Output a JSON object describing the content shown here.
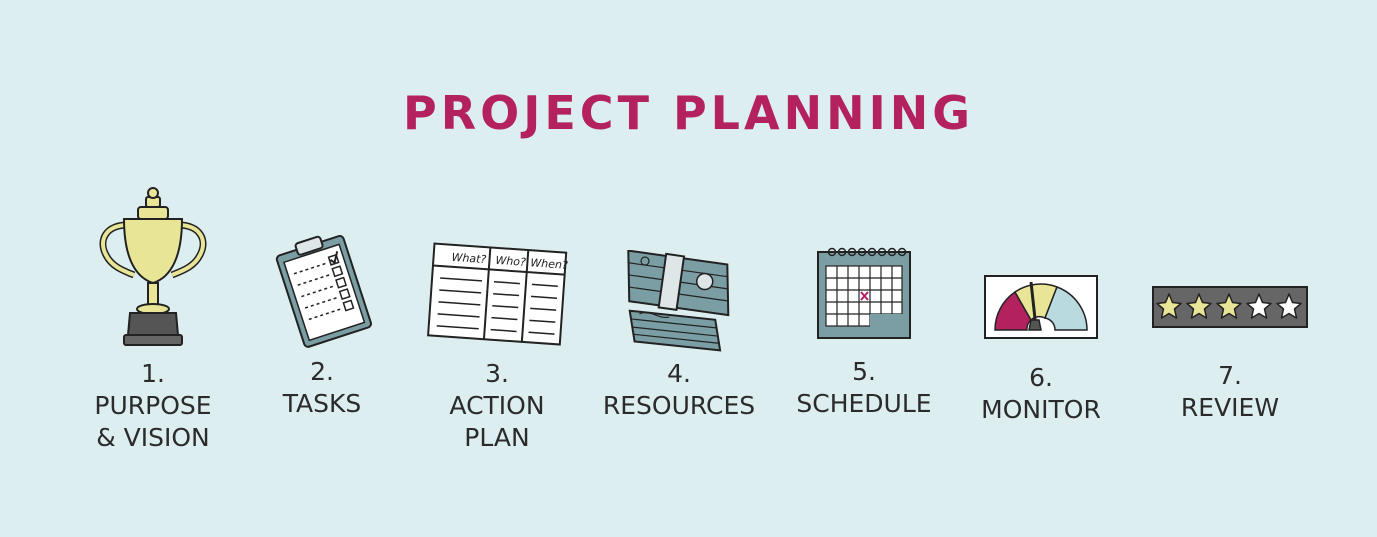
{
  "title": "PROJECT PLANNING",
  "colors": {
    "background": "#ddeef0",
    "title": "#b3225f",
    "teal": "#7a9ea3",
    "yellow": "#e9e597",
    "magenta": "#b3225f",
    "light_blue": "#b9dbe0",
    "dark_gray": "#666666"
  },
  "steps": [
    {
      "number": "1.",
      "label": "PURPOSE\n& VISION",
      "icon": "trophy-icon"
    },
    {
      "number": "2.",
      "label": "TASKS",
      "icon": "clipboard-checklist-icon"
    },
    {
      "number": "3.",
      "label": "ACTION\nPLAN",
      "icon": "action-plan-table-icon",
      "table_headers": [
        "What?",
        "Who?",
        "When?"
      ]
    },
    {
      "number": "4.",
      "label": "RESOURCES",
      "icon": "money-stack-icon"
    },
    {
      "number": "5.",
      "label": "SCHEDULE",
      "icon": "calendar-icon"
    },
    {
      "number": "6.",
      "label": "MONITOR",
      "icon": "gauge-icon"
    },
    {
      "number": "7.",
      "label": "REVIEW",
      "icon": "star-rating-icon"
    }
  ]
}
